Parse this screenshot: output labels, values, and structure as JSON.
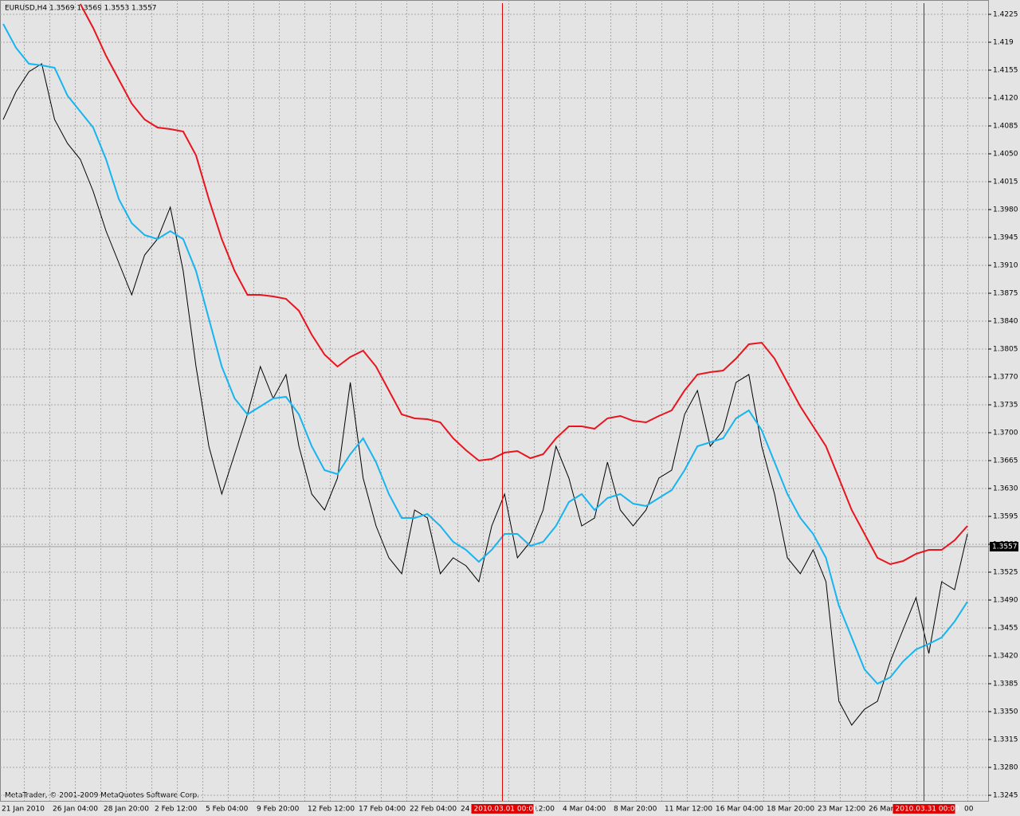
{
  "chart_data": {
    "type": "line",
    "header": "EURUSD,H4  1.3569 1.3569 1.3553 1.3557",
    "watermark": "MetaTrader, © 2001-2009 MetaQuotes Software Corp.",
    "last_price": 1.3557,
    "ylim": [
      1.3238,
      1.4243
    ],
    "yticks": [
      1.4225,
      1.419,
      1.4155,
      {
        "value": 1.412,
        "label": "1.4120"
      },
      1.4085,
      {
        "value": 1.405,
        "label": "1.4050"
      },
      1.4015,
      {
        "value": 1.398,
        "label": "1.3980"
      },
      1.3945,
      {
        "value": 1.391,
        "label": "1.3910"
      },
      1.3875,
      {
        "value": 1.384,
        "label": "1.3840"
      },
      1.3805,
      {
        "value": 1.377,
        "label": "1.3770"
      },
      1.3735,
      {
        "value": 1.37,
        "label": "1.3700"
      },
      1.3665,
      {
        "value": 1.363,
        "label": "1.3630"
      },
      1.3595,
      {
        "value": 1.356,
        "label": "1.3560"
      },
      1.3525,
      {
        "value": 1.349,
        "label": "1.3490"
      },
      1.3455,
      {
        "value": 1.342,
        "label": "1.3420"
      },
      1.3385,
      {
        "value": 1.335,
        "label": "1.3350"
      },
      1.3315,
      {
        "value": 1.328,
        "label": "1.3280"
      },
      1.3245
    ],
    "x_labels": [
      "21 Jan 2010",
      "26 Jan 04:00",
      "28 Jan 20:00",
      "2 Feb 12:00",
      "5 Feb 04:00",
      "9 Feb 20:00",
      "12 Feb 12:00",
      "17 Feb 04:00",
      "22 Feb 04:00",
      "24",
      "12:00",
      "4 Mar 04:00",
      "8 Mar 20:00",
      "11 Mar 12:00",
      "16 Mar 04:00",
      "18 Mar 20:00",
      "23 Mar 12:00",
      "26 Mar",
      "00"
    ],
    "markers": [
      "2010.03.01 00:00",
      "2010.03.31 00:00"
    ],
    "series": [
      {
        "color": "#000000",
        "values": [
          1.4093,
          1.4128,
          1.4153,
          1.4163,
          1.4093,
          1.4063,
          1.4043,
          1.4003,
          1.3953,
          1.3913,
          1.3873,
          1.3923,
          1.3943,
          1.3983,
          1.3903,
          1.3783,
          1.3683,
          1.3623,
          1.3673,
          1.3723,
          1.3783,
          1.3743,
          1.3773,
          1.3683,
          1.3623,
          1.3603,
          1.3643,
          1.3763,
          1.3643,
          1.3583,
          1.3543,
          1.3523,
          1.3603,
          1.3593,
          1.3523,
          1.3543,
          1.3533,
          1.3513,
          1.3583,
          1.3623,
          1.3543,
          1.3563,
          1.3603,
          1.3683,
          1.3643,
          1.3583,
          1.3593,
          1.3663,
          1.3603,
          1.3583,
          1.3603,
          1.3643,
          1.3653,
          1.3723,
          1.3753,
          1.3683,
          1.3703,
          1.3763,
          1.3773,
          1.3683,
          1.3623,
          1.3543,
          1.3523,
          1.3553,
          1.3513,
          1.3363,
          1.3333,
          1.3353,
          1.3363,
          1.3413,
          1.3453,
          1.3493,
          1.3423,
          1.3513,
          1.3503,
          1.3573
        ]
      },
      {
        "color": "#16b4f0",
        "values": [
          1.4213,
          1.4183,
          1.4163,
          1.4161,
          1.4158,
          1.4123,
          1.4103,
          1.4083,
          1.4043,
          1.3993,
          1.3963,
          1.3948,
          1.3943,
          1.3953,
          1.3943,
          1.3903,
          1.3843,
          1.3783,
          1.3743,
          1.3723,
          1.3733,
          1.3743,
          1.3745,
          1.3723,
          1.3683,
          1.3653,
          1.3648,
          1.3673,
          1.3693,
          1.3663,
          1.3623,
          1.3593,
          1.3593,
          1.3598,
          1.3583,
          1.3563,
          1.3553,
          1.3538,
          1.3553,
          1.3573,
          1.3573,
          1.3558,
          1.3563,
          1.3583,
          1.3613,
          1.3623,
          1.3603,
          1.3618,
          1.3623,
          1.3611,
          1.3608,
          1.3618,
          1.3628,
          1.3653,
          1.3683,
          1.3688,
          1.3693,
          1.3718,
          1.3728,
          1.3703,
          1.3663,
          1.3623,
          1.3593,
          1.3573,
          1.3543,
          1.3483,
          1.3443,
          1.3403,
          1.3385,
          1.3393,
          1.3413,
          1.3428,
          1.3435,
          1.3443,
          1.3463,
          1.3488
        ]
      },
      {
        "color": "#e8141e",
        "values": [
          null,
          null,
          null,
          null,
          null,
          null,
          1.4238,
          1.4208,
          1.4173,
          1.4143,
          1.4113,
          1.4093,
          1.4083,
          1.4081,
          1.4078,
          1.4048,
          1.3993,
          1.3943,
          1.3903,
          1.3873,
          1.3873,
          1.3871,
          1.3868,
          1.3853,
          1.3823,
          1.3798,
          1.3783,
          1.3795,
          1.3803,
          1.3783,
          1.3753,
          1.3723,
          1.3718,
          1.3717,
          1.3713,
          1.3693,
          1.3678,
          1.3665,
          1.3667,
          1.3675,
          1.3677,
          1.3668,
          1.3673,
          1.3693,
          1.3708,
          1.3708,
          1.3705,
          1.3718,
          1.3721,
          1.3715,
          1.3713,
          1.3721,
          1.3728,
          1.3753,
          1.3773,
          1.3776,
          1.3778,
          1.3793,
          1.3811,
          1.3813,
          1.3793,
          1.3763,
          1.3733,
          1.3708,
          1.3683,
          1.3643,
          1.3603,
          1.3573,
          1.3543,
          1.3535,
          1.3539,
          1.3548,
          1.3553,
          1.3553,
          1.3565,
          1.3583
        ]
      }
    ]
  }
}
